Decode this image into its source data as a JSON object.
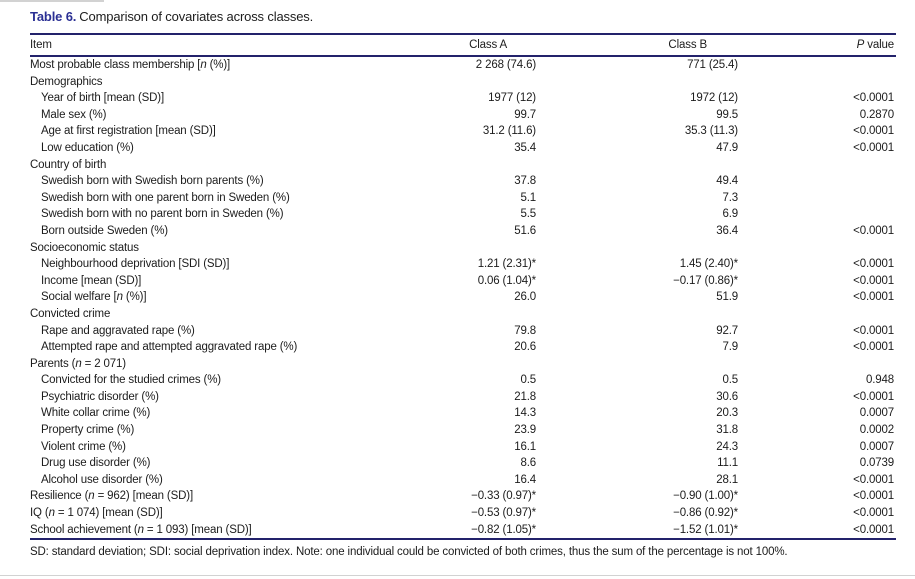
{
  "title": {
    "label": "Table 6.",
    "caption": "Comparison of covariates across classes."
  },
  "table": {
    "headers": {
      "item": "Item",
      "class_a": "Class A",
      "class_b": "Class B",
      "p_value": "P value"
    },
    "rows": [
      {
        "item": "Most probable class membership [n (%)]",
        "class_a": "2 268 (74.6)",
        "class_b": "771 (25.4)",
        "p_value": "",
        "indent": false
      },
      {
        "item": "Demographics",
        "class_a": "",
        "class_b": "",
        "p_value": "",
        "indent": false
      },
      {
        "item": "Year of birth [mean (SD)]",
        "class_a": "1977 (12)",
        "class_b": "1972 (12)",
        "p_value": "<0.0001",
        "indent": true
      },
      {
        "item": "Male sex (%)",
        "class_a": "99.7",
        "class_b": "99.5",
        "p_value": "0.2870",
        "indent": true
      },
      {
        "item": "Age at first registration [mean (SD)]",
        "class_a": "31.2 (11.6)",
        "class_b": "35.3 (11.3)",
        "p_value": "<0.0001",
        "indent": true
      },
      {
        "item": "Low education (%)",
        "class_a": "35.4",
        "class_b": "47.9",
        "p_value": "<0.0001",
        "indent": true
      },
      {
        "item": "Country of birth",
        "class_a": "",
        "class_b": "",
        "p_value": "",
        "indent": false
      },
      {
        "item": "Swedish born with Swedish born parents (%)",
        "class_a": "37.8",
        "class_b": "49.4",
        "p_value": "",
        "indent": true
      },
      {
        "item": "Swedish born with one parent born in Sweden (%)",
        "class_a": "5.1",
        "class_b": "7.3",
        "p_value": "",
        "indent": true
      },
      {
        "item": "Swedish born with no parent born in Sweden (%)",
        "class_a": "5.5",
        "class_b": "6.9",
        "p_value": "",
        "indent": true
      },
      {
        "item": "Born outside Sweden (%)",
        "class_a": "51.6",
        "class_b": "36.4",
        "p_value": "<0.0001",
        "indent": true
      },
      {
        "item": "Socioeconomic status",
        "class_a": "",
        "class_b": "",
        "p_value": "",
        "indent": false
      },
      {
        "item": "Neighbourhood deprivation [SDI (SD)]",
        "class_a": "1.21 (2.31)*",
        "class_b": "1.45 (2.40)*",
        "p_value": "<0.0001",
        "indent": true
      },
      {
        "item": "Income [mean (SD)]",
        "class_a": "0.06 (1.04)*",
        "class_b": "−0.17 (0.86)*",
        "p_value": "<0.0001",
        "indent": true
      },
      {
        "item": "Social welfare [n (%)]",
        "class_a": "26.0",
        "class_b": "51.9",
        "p_value": "<0.0001",
        "indent": true
      },
      {
        "item": "Convicted crime",
        "class_a": "",
        "class_b": "",
        "p_value": "",
        "indent": false
      },
      {
        "item": "Rape and aggravated rape (%)",
        "class_a": "79.8",
        "class_b": "92.7",
        "p_value": "<0.0001",
        "indent": true
      },
      {
        "item": "Attempted rape and attempted aggravated rape (%)",
        "class_a": "20.6",
        "class_b": "7.9",
        "p_value": "<0.0001",
        "indent": true
      },
      {
        "item": "Parents (n = 2 071)",
        "class_a": "",
        "class_b": "",
        "p_value": "",
        "indent": false
      },
      {
        "item": "Convicted for the studied crimes (%)",
        "class_a": "0.5",
        "class_b": "0.5",
        "p_value": "0.948",
        "indent": true
      },
      {
        "item": "Psychiatric disorder (%)",
        "class_a": "21.8",
        "class_b": "30.6",
        "p_value": "<0.0001",
        "indent": true
      },
      {
        "item": "White collar crime (%)",
        "class_a": "14.3",
        "class_b": "20.3",
        "p_value": "0.0007",
        "indent": true
      },
      {
        "item": "Property crime (%)",
        "class_a": "23.9",
        "class_b": "31.8",
        "p_value": "0.0002",
        "indent": true
      },
      {
        "item": "Violent crime (%)",
        "class_a": "16.1",
        "class_b": "24.3",
        "p_value": "0.0007",
        "indent": true
      },
      {
        "item": "Drug use disorder (%)",
        "class_a": "8.6",
        "class_b": "11.1",
        "p_value": "0.0739",
        "indent": true
      },
      {
        "item": "Alcohol use disorder (%)",
        "class_a": "16.4",
        "class_b": "28.1",
        "p_value": "<0.0001",
        "indent": true
      },
      {
        "item": "Resilience (n = 962) [mean (SD)]",
        "class_a": "−0.33 (0.97)*",
        "class_b": "−0.90 (1.00)*",
        "p_value": "<0.0001",
        "indent": false
      },
      {
        "item": "IQ (n = 1 074) [mean (SD)]",
        "class_a": "−0.53 (0.97)*",
        "class_b": "−0.86 (0.92)*",
        "p_value": "<0.0001",
        "indent": false
      },
      {
        "item": "School achievement (n = 1 093) [mean (SD)]",
        "class_a": "−0.82 (1.05)*",
        "class_b": "−1.52 (1.01)*",
        "p_value": "<0.0001",
        "indent": false
      }
    ]
  },
  "footnote": {
    "text": "SD: standard deviation; SDI: social deprivation index. Note: one individual could be convicted of both crimes, thus the sum of the percentage is not 100%."
  },
  "colors": {
    "title_navy": "#2b3094",
    "rule_navy": "#23226b",
    "text": "#1c1c1c"
  }
}
